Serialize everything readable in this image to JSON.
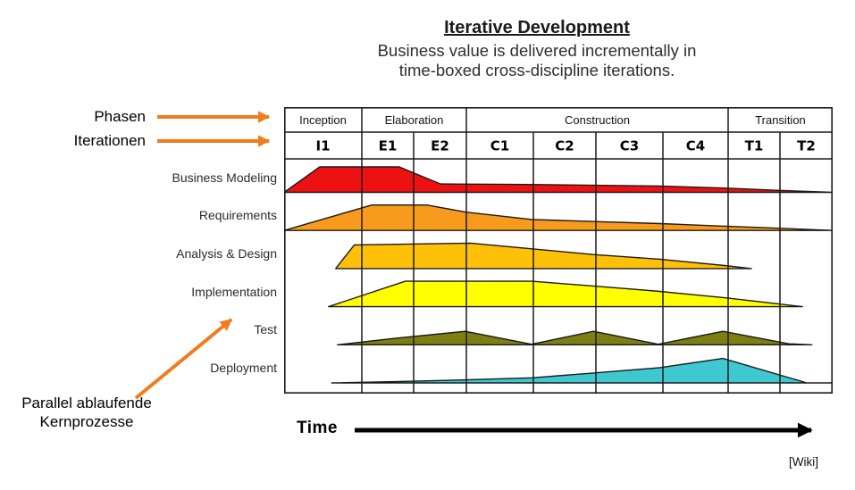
{
  "title": {
    "heading": "Iterative Development",
    "subtitle_line1": "Business value is delivered incrementally in",
    "subtitle_line2": "time-boxed cross-discipline iterations."
  },
  "annotations": {
    "phases_label": "Phasen",
    "iterations_label": "Iterationen",
    "parallel_label_line1": "Parallel ablaufende",
    "parallel_label_line2": "Kernprozesse",
    "time_label": "Time",
    "credit": "[Wiki]",
    "arrow_color": "#F07C1E"
  },
  "chart_data": {
    "type": "area",
    "title": "RUP hump chart: effort per discipline across phases and iterations",
    "xlabel": "Time",
    "ylabel": "relative effort (unlabeled)",
    "grid": "vertical lines at iteration boundaries, no horizontal gridlines",
    "legend_position": "row labels at left of chart",
    "phases": [
      {
        "label": "Inception",
        "start": 0.0,
        "end": 0.1417
      },
      {
        "label": "Elaboration",
        "start": 0.1417,
        "end": 0.3322
      },
      {
        "label": "Construction",
        "start": 0.3322,
        "end": 0.8094
      },
      {
        "label": "Transition",
        "start": 0.8094,
        "end": 1.0
      }
    ],
    "iterations": [
      {
        "label": "I1",
        "start": 0.0,
        "end": 0.1417
      },
      {
        "label": "E1",
        "start": 0.1417,
        "end": 0.2362
      },
      {
        "label": "E2",
        "start": 0.2362,
        "end": 0.3322
      },
      {
        "label": "C1",
        "start": 0.3322,
        "end": 0.4544
      },
      {
        "label": "C2",
        "start": 0.4544,
        "end": 0.5684
      },
      {
        "label": "C3",
        "start": 0.5684,
        "end": 0.6906
      },
      {
        "label": "C4",
        "start": 0.6906,
        "end": 0.8094
      },
      {
        "label": "T1",
        "start": 0.8094,
        "end": 0.9039
      },
      {
        "label": "T2",
        "start": 0.9039,
        "end": 1.0
      }
    ],
    "disciplines": [
      {
        "name": "Business Modeling",
        "color": "#EE1111",
        "effort_profile": [
          [
            0,
            0
          ],
          [
            0.065,
            1
          ],
          [
            0.21,
            1
          ],
          [
            0.285,
            0.33
          ],
          [
            0.45,
            0.31
          ],
          [
            0.685,
            0.25
          ],
          [
            0.803,
            0.17
          ],
          [
            0.897,
            0.08
          ],
          [
            1,
            0
          ]
        ]
      },
      {
        "name": "Requirements",
        "color": "#F89A1C",
        "effort_profile": [
          [
            0,
            0
          ],
          [
            0.16,
            1
          ],
          [
            0.26,
            1
          ],
          [
            0.332,
            0.72
          ],
          [
            0.452,
            0.43
          ],
          [
            0.564,
            0.35
          ],
          [
            0.685,
            0.27
          ],
          [
            0.803,
            0.17
          ],
          [
            0.897,
            0.09
          ],
          [
            1,
            0
          ]
        ]
      },
      {
        "name": "Analysis & Design",
        "color": "#FFC008",
        "effort_profile": [
          [
            0.094,
            0
          ],
          [
            0.128,
            0.93
          ],
          [
            0.34,
            1
          ],
          [
            0.564,
            0.55
          ],
          [
            0.685,
            0.37
          ],
          [
            0.803,
            0.12
          ],
          [
            0.852,
            0
          ]
        ]
      },
      {
        "name": "Implementation",
        "color": "#FFFF00",
        "effort_profile": [
          [
            0.081,
            0
          ],
          [
            0.221,
            1
          ],
          [
            0.452,
            1
          ],
          [
            0.617,
            0.72
          ],
          [
            0.685,
            0.6
          ],
          [
            0.803,
            0.35
          ],
          [
            0.897,
            0.12
          ],
          [
            0.945,
            0
          ]
        ]
      },
      {
        "name": "Test",
        "color": "#7E7F12",
        "effort_profile": [
          [
            0.097,
            0
          ],
          [
            0.2,
            0.25
          ],
          [
            0.33,
            0.53
          ],
          [
            0.451,
            0.02
          ],
          [
            0.564,
            0.53
          ],
          [
            0.682,
            0.02
          ],
          [
            0.8,
            0.53
          ],
          [
            0.92,
            0.04
          ],
          [
            0.962,
            0
          ]
        ]
      },
      {
        "name": "Deployment",
        "color": "#3EC9D1",
        "effort_profile": [
          [
            0.087,
            0
          ],
          [
            0.22,
            0.06
          ],
          [
            0.332,
            0.12
          ],
          [
            0.452,
            0.2
          ],
          [
            0.564,
            0.39
          ],
          [
            0.685,
            0.6
          ],
          [
            0.8,
            0.96
          ],
          [
            0.953,
            0
          ],
          [
            1,
            0
          ]
        ]
      }
    ]
  }
}
